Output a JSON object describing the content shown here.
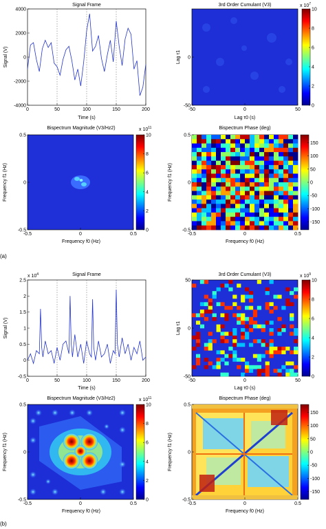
{
  "panel_labels": [
    "(a)",
    "(b)"
  ],
  "colorbar_ticks": {
    "cum_a": [
      0,
      2,
      4,
      6,
      8,
      10
    ],
    "bis": [
      0,
      2,
      4,
      6,
      8,
      10
    ],
    "phase": [
      -150,
      -100,
      -50,
      0,
      50,
      100,
      150
    ],
    "cum_b": [
      0,
      2,
      4,
      6,
      8,
      10
    ]
  },
  "chart_data": [
    {
      "id": "a-signal",
      "type": "line",
      "title": "Signal Frame",
      "xlabel": "Time (s)",
      "ylabel": "Signal (V)",
      "xlim": [
        0,
        200
      ],
      "ylim": [
        -4000,
        4000
      ],
      "xticks": [
        0,
        50,
        100,
        150,
        200
      ],
      "yticks": [
        -4000,
        -2000,
        0,
        2000,
        4000
      ],
      "series": [
        {
          "x": [
            0,
            5,
            10,
            15,
            20,
            25,
            30,
            35,
            40,
            45,
            50,
            55,
            60,
            65,
            70,
            75,
            80,
            85,
            90,
            95,
            100,
            105,
            110,
            115,
            120,
            125,
            130,
            135,
            140,
            145,
            150,
            155,
            160,
            165,
            170,
            175,
            180,
            185,
            190,
            195,
            200
          ],
          "values": [
            -1000,
            1000,
            1200,
            -200,
            -1200,
            700,
            1400,
            800,
            1200,
            -500,
            -800,
            -1500,
            -200,
            600,
            900,
            -300,
            -1900,
            -1000,
            -2400,
            -400,
            2200,
            3600,
            500,
            900,
            1800,
            -100,
            -1200,
            200,
            1400,
            -400,
            3000,
            900,
            -700,
            1500,
            2400,
            1900,
            -1000,
            -300,
            -3200,
            -2500,
            -600
          ]
        }
      ]
    },
    {
      "id": "a-cumulant",
      "type": "heatmap",
      "title": "3rd Order Cumulant (V3)",
      "xlabel": "Lag τ0 (s)",
      "ylabel": "Lag τ1",
      "xlim": [
        -50,
        50
      ],
      "ylim": [
        -50,
        50
      ],
      "xticks": [
        -50,
        0,
        50
      ],
      "yticks": [
        -50,
        0
      ],
      "colorbar": {
        "min": 0,
        "max": 10,
        "exponent": "x 10^7"
      }
    },
    {
      "id": "a-bispectrum",
      "type": "heatmap",
      "title": "Bispectrum Magnitude (V3/Hz2)",
      "xlabel": "Frequency f0 (Hz)",
      "ylabel": "Frequency f1 (Hz)",
      "xlim": [
        -0.5,
        0.5
      ],
      "ylim": [
        -0.5,
        0.5
      ],
      "xticks": [
        -0.5,
        0,
        0.5
      ],
      "yticks": [
        -0.5,
        0,
        0.5
      ],
      "colorbar": {
        "min": 0,
        "max": 10,
        "exponent": "x 10^11"
      }
    },
    {
      "id": "a-phase",
      "type": "heatmap",
      "title": "Bispectrum Phase (deg)",
      "xlabel": "Frequency f0 (Hz)",
      "ylabel": "Frequency f1 (Hz)",
      "xlim": [
        -0.5,
        0.5
      ],
      "ylim": [
        -0.5,
        0.5
      ],
      "xticks": [
        -0.5,
        0,
        0.5
      ],
      "yticks": [
        -0.5,
        0,
        0.5
      ],
      "colorbar": {
        "min": -180,
        "max": 180
      }
    },
    {
      "id": "b-signal",
      "type": "line",
      "title": "Signal Frame",
      "xlabel": "Time (s)",
      "ylabel": "Signal (V)",
      "xlim": [
        0,
        200
      ],
      "ylim": [
        -0.5,
        2.5
      ],
      "exponent": "x 10^4",
      "xticks": [
        0,
        50,
        100,
        150,
        200
      ],
      "yticks": [
        -0.5,
        0,
        0.5,
        1,
        1.5,
        2,
        2.5
      ],
      "series": [
        {
          "x": [
            0,
            5,
            10,
            15,
            20,
            22,
            24,
            26,
            30,
            35,
            40,
            45,
            50,
            55,
            60,
            65,
            70,
            72,
            74,
            76,
            80,
            85,
            90,
            95,
            100,
            105,
            108,
            110,
            112,
            115,
            120,
            125,
            130,
            135,
            140,
            145,
            148,
            150,
            152,
            155,
            160,
            165,
            170,
            175,
            180,
            185,
            190,
            195,
            200
          ],
          "values": [
            0.0,
            0.2,
            -0.1,
            0.3,
            0.2,
            1.6,
            0.4,
            0.1,
            0.6,
            0.2,
            0.3,
            -0.1,
            0.4,
            0.0,
            0.5,
            0.6,
            0.2,
            2.0,
            0.5,
            0.1,
            0.8,
            0.1,
            0.5,
            -0.1,
            0.6,
            0.2,
            0.1,
            1.9,
            0.4,
            0.0,
            0.6,
            0.1,
            0.2,
            0.5,
            -0.1,
            0.3,
            0.2,
            2.2,
            0.5,
            0.1,
            0.7,
            0.2,
            0.5,
            0.0,
            0.4,
            0.2,
            0.6,
            0.0,
            0.1
          ]
        }
      ]
    },
    {
      "id": "b-cumulant",
      "type": "heatmap",
      "title": "3rd Order Cumulant (V3)",
      "xlabel": "Lag τ0 (s)",
      "ylabel": "Lag τ1",
      "xlim": [
        -50,
        50
      ],
      "ylim": [
        -50,
        50
      ],
      "xticks": [
        -50,
        0,
        50
      ],
      "yticks": [
        -50,
        0,
        50
      ],
      "colorbar": {
        "min": 0,
        "max": 10,
        "exponent": "x 10^9"
      }
    },
    {
      "id": "b-bispectrum",
      "type": "heatmap",
      "title": "Bispectrum Magnitude (V3/Hz2)",
      "xlabel": "Frequency f0 (Hz)",
      "ylabel": "Frequency f1 (Hz)",
      "xlim": [
        -0.5,
        0.5
      ],
      "ylim": [
        -0.5,
        0.5
      ],
      "xticks": [
        -0.5,
        0,
        0.5
      ],
      "yticks": [
        -0.5,
        0,
        0.5
      ],
      "colorbar": {
        "min": 0,
        "max": 10,
        "exponent": "x 10^11"
      }
    },
    {
      "id": "b-phase",
      "type": "heatmap",
      "title": "Bispectrum Phase (deg)",
      "xlabel": "Frequency f0 (Hz)",
      "ylabel": "Frequency f1 (Hz)",
      "xlim": [
        -0.5,
        0.5
      ],
      "ylim": [
        -0.5,
        0.5
      ],
      "xticks": [
        -0.5,
        0,
        0.5
      ],
      "yticks": [
        -0.5,
        0,
        0.5
      ],
      "colorbar": {
        "min": -180,
        "max": 180
      }
    }
  ]
}
